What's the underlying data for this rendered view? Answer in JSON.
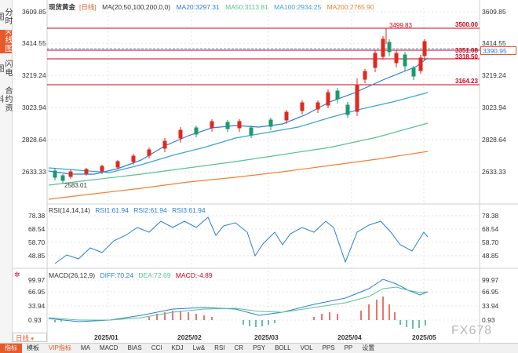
{
  "header": {
    "symbol": "现货黄金",
    "period": "[日线]",
    "ma_params": "MA(20,50,100,200,0,0)",
    "ma20": "MA20:3297.31",
    "ma50": "MA50:3113.81",
    "ma100": "MA100:2934.25",
    "ma200": "MA200:2765.90"
  },
  "colors": {
    "up": "#e0281e",
    "down": "#1a9a6e",
    "ma20": "#2a7ed8",
    "ma50": "#56c38f",
    "ma100": "#3aa3d6",
    "ma200": "#f08030"
  },
  "side_tabs": [
    "分时图",
    "K线图",
    "闪电图",
    "合约资料"
  ],
  "y_axis": [
    "3609.85",
    "3414.55",
    "3219.24",
    "3023.94",
    "2828.64",
    "2633.33"
  ],
  "price_marks": {
    "high": "3499.83",
    "low": "2583.01",
    "current": "3390.95"
  },
  "levels": [
    "3500.00",
    "3351.08",
    "3318.50",
    "3164.23"
  ],
  "rsi": {
    "label": "RSI(14,14,14)",
    "rsi1": "RSI1:61.94",
    "rsi2": "RSI2:61.94",
    "rsi3": "RSI3:61.94",
    "axis": [
      "78.38",
      "68.54",
      "58.70",
      "48.85"
    ]
  },
  "macd": {
    "label": "MACD(26,12,9)",
    "diff": "DIFF:70.24",
    "dea": "DEA:72.69",
    "macd": "MACD:-4.89",
    "axis": [
      "99.97",
      "66.95",
      "33.94",
      "0.93"
    ]
  },
  "x_axis": [
    "2025/01",
    "2025/02",
    "2025/03",
    "2025/04",
    "2025/05"
  ],
  "period_select": "日线",
  "toolbar": [
    "指标",
    "模板",
    "VIP指标",
    "MA",
    "MACD",
    "BIAS",
    "CCI",
    "KDJ",
    "Lw&",
    "RSI",
    "CR",
    "PSY",
    "BOLL",
    "VOL",
    "PPS",
    "PP",
    "设置"
  ],
  "watermark": "FX678"
}
